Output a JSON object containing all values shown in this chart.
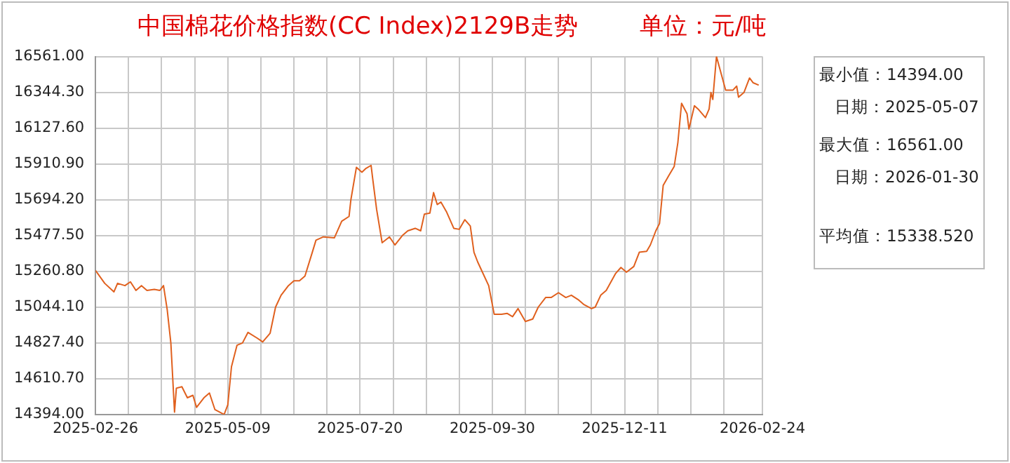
{
  "chart_data": {
    "type": "line",
    "title": "中国棉花价格指数(CC Index)2129B走势",
    "subtitle": "单位：元/吨",
    "annotations": [
      "最小值：14394.00",
      "日期：2025-05-07",
      "最大值：16561.00",
      "日期：2026-01-30",
      "平均值：15338.520"
    ],
    "x": [
      "2025-02-26",
      "2025-03-03",
      "2025-03-08",
      "2025-03-10",
      "2025-03-14",
      "2025-03-17",
      "2025-03-20",
      "2025-03-23",
      "2025-03-26",
      "2025-03-30",
      "2025-04-02",
      "2025-04-04",
      "2025-04-06",
      "2025-04-08",
      "2025-04-10",
      "2025-04-11",
      "2025-04-14",
      "2025-04-17",
      "2025-04-20",
      "2025-04-22",
      "2025-04-26",
      "2025-04-29",
      "2025-05-02",
      "2025-05-07",
      "2025-05-09",
      "2025-05-11",
      "2025-05-14",
      "2025-05-17",
      "2025-05-20",
      "2025-05-25",
      "2025-05-28",
      "2025-06-01",
      "2025-06-04",
      "2025-06-07",
      "2025-06-11",
      "2025-06-14",
      "2025-06-17",
      "2025-06-20",
      "2025-06-24",
      "2025-06-26",
      "2025-06-30",
      "2025-07-06",
      "2025-07-10",
      "2025-07-14",
      "2025-07-15",
      "2025-07-18",
      "2025-07-21",
      "2025-07-23",
      "2025-07-26",
      "2025-07-27",
      "2025-07-29",
      "2025-08-01",
      "2025-08-05",
      "2025-08-08",
      "2025-08-12",
      "2025-08-15",
      "2025-08-19",
      "2025-08-22",
      "2025-08-24",
      "2025-08-27",
      "2025-08-29",
      "2025-08-31",
      "2025-09-02",
      "2025-09-05",
      "2025-09-09",
      "2025-09-12",
      "2025-09-15",
      "2025-09-18",
      "2025-09-20",
      "2025-09-22",
      "2025-09-25",
      "2025-09-28",
      "2025-10-01",
      "2025-10-05",
      "2025-10-08",
      "2025-10-11",
      "2025-10-14",
      "2025-10-18",
      "2025-10-22",
      "2025-10-25",
      "2025-10-29",
      "2025-11-01",
      "2025-11-05",
      "2025-11-09",
      "2025-11-12",
      "2025-11-16",
      "2025-11-19",
      "2025-11-23",
      "2025-11-25",
      "2025-11-28",
      "2025-12-01",
      "2025-12-06",
      "2025-12-09",
      "2025-12-12",
      "2025-12-16",
      "2025-12-19",
      "2025-12-23",
      "2025-12-25",
      "2025-12-28",
      "2025-12-30",
      "2026-01-01",
      "2026-01-04",
      "2026-01-07",
      "2026-01-09",
      "2026-01-11",
      "2026-01-14",
      "2026-01-15",
      "2026-01-18",
      "2026-01-20",
      "2026-01-24",
      "2026-01-26",
      "2026-01-27",
      "2026-01-28",
      "2026-01-29",
      "2026-01-30",
      "2026-02-04",
      "2026-02-08",
      "2026-02-10",
      "2026-02-11",
      "2026-02-14",
      "2026-02-17",
      "2026-02-19",
      "2026-02-22"
    ],
    "series": [
      {
        "color": "#e0601e",
        "values": [
          15266,
          15188,
          15136,
          15188,
          15174,
          15197,
          15145,
          15174,
          15145,
          15151,
          15145,
          15174,
          15030,
          14827,
          14408,
          14553,
          14562,
          14495,
          14510,
          14437,
          14495,
          14524,
          14423,
          14394,
          14452,
          14683,
          14813,
          14827,
          14891,
          14856,
          14833,
          14885,
          15044,
          15116,
          15174,
          15203,
          15203,
          15232,
          15376,
          15449,
          15469,
          15463,
          15564,
          15593,
          15694,
          15890,
          15861,
          15882,
          15902,
          15810,
          15636,
          15434,
          15469,
          15420,
          15477,
          15506,
          15521,
          15506,
          15607,
          15613,
          15737,
          15665,
          15680,
          15622,
          15521,
          15515,
          15573,
          15535,
          15376,
          15318,
          15246,
          15174,
          15001,
          15001,
          15006,
          14986,
          15035,
          14957,
          14972,
          15044,
          15102,
          15102,
          15131,
          15102,
          15116,
          15087,
          15058,
          15035,
          15044,
          15116,
          15145,
          15246,
          15284,
          15255,
          15290,
          15376,
          15382,
          15420,
          15506,
          15550,
          15781,
          15839,
          15896,
          16041,
          16278,
          16214,
          16122,
          16263,
          16243,
          16191,
          16243,
          16344,
          16301,
          16431,
          16561,
          16358,
          16358,
          16382,
          16315,
          16344,
          16431,
          16402,
          16388
        ]
      }
    ],
    "xlim": [
      "2025-02-26",
      "2026-02-24"
    ],
    "xticks": [
      "2025-02-26",
      {
        "value": "2025-03-16",
        "label": null
      },
      {
        "value": "2025-04-03",
        "label": null
      },
      {
        "value": "2025-04-21",
        "label": null
      },
      "2025-05-09",
      {
        "value": "2025-05-27",
        "label": null
      },
      {
        "value": "2025-06-14",
        "label": null
      },
      {
        "value": "2025-07-02",
        "label": null
      },
      "2025-07-20",
      {
        "value": "2025-08-07",
        "label": null
      },
      {
        "value": "2025-08-25",
        "label": null
      },
      {
        "value": "2025-09-12",
        "label": null
      },
      "2025-09-30",
      {
        "value": "2025-10-18",
        "label": null
      },
      {
        "value": "2025-11-05",
        "label": null
      },
      {
        "value": "2025-11-23",
        "label": null
      },
      "2025-12-11",
      {
        "value": "2025-12-29",
        "label": null
      },
      {
        "value": "2026-01-16",
        "label": null
      },
      {
        "value": "2026-02-03",
        "label": null
      },
      "2026-02-24"
    ],
    "ylim": [
      14394,
      16561
    ],
    "yticks": [
      {
        "value": 14394,
        "label": "14394.00"
      },
      {
        "value": 14610.7,
        "label": "14610.70"
      },
      {
        "value": 14827.4,
        "label": "14827.40"
      },
      {
        "value": 15044.1,
        "label": "15044.10"
      },
      {
        "value": 15260.8,
        "label": "15260.80"
      },
      {
        "value": 15477.5,
        "label": "15477.50"
      },
      {
        "value": 15694.2,
        "label": "15694.20"
      },
      {
        "value": 15910.9,
        "label": "15910.90"
      },
      {
        "value": 16127.6,
        "label": "16127.60"
      },
      {
        "value": 16344.3,
        "label": "16344.30"
      },
      {
        "value": 16561,
        "label": "16561.00"
      }
    ],
    "grid": true,
    "legend": false,
    "marker": "none"
  }
}
